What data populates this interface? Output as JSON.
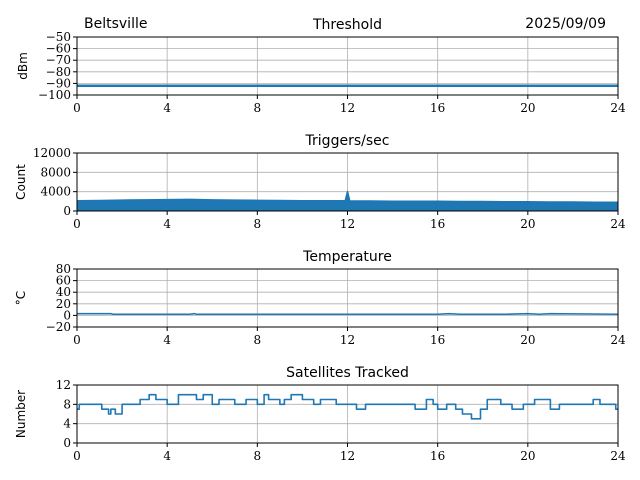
{
  "header": {
    "location": "Beltsville",
    "date": "2025/09/09"
  },
  "colors": {
    "series": "#1f77b4",
    "grid": "#b0b0b0",
    "axis": "#000000"
  },
  "chart_data": [
    {
      "type": "line",
      "title": "Threshold",
      "ylabel": "dBm",
      "xlim": [
        0,
        24
      ],
      "ylim": [
        -100,
        -50
      ],
      "xticks": [
        0,
        4,
        8,
        12,
        16,
        20,
        24
      ],
      "yticks": [
        -100,
        -90,
        -80,
        -70,
        -60,
        -50
      ],
      "ytick_labels": [
        "−100",
        "−90",
        "−80",
        "−70",
        "−60",
        "−50"
      ],
      "grid": true,
      "series": [
        {
          "x": [
            0,
            24
          ],
          "values": [
            -92,
            -92
          ]
        }
      ]
    },
    {
      "type": "line",
      "title": "Triggers/sec",
      "ylabel": "Count",
      "xlim": [
        0,
        24
      ],
      "ylim": [
        0,
        12000
      ],
      "xticks": [
        0,
        4,
        8,
        12,
        16,
        20,
        24
      ],
      "yticks": [
        0,
        4000,
        8000,
        12000
      ],
      "ytick_labels": [
        "0",
        "4000",
        "8000",
        "12000"
      ],
      "grid": true,
      "fill": true,
      "series": [
        {
          "x": [
            0,
            1,
            2,
            3,
            4,
            5,
            6,
            7,
            8,
            9,
            10,
            11,
            11.9,
            12,
            12.1,
            13,
            14,
            15,
            16,
            17,
            18,
            19,
            20,
            21,
            22,
            23,
            24
          ],
          "values": [
            2100,
            2150,
            2250,
            2300,
            2350,
            2400,
            2300,
            2250,
            2200,
            2150,
            2100,
            2100,
            2100,
            4000,
            2050,
            2050,
            2000,
            2000,
            2000,
            1950,
            1950,
            1900,
            1900,
            1850,
            1850,
            1800,
            1800
          ]
        }
      ]
    },
    {
      "type": "line",
      "title": "Temperature",
      "ylabel": "°C",
      "xlim": [
        0,
        24
      ],
      "ylim": [
        -20,
        80
      ],
      "xticks": [
        0,
        4,
        8,
        12,
        16,
        20,
        24
      ],
      "yticks": [
        -20,
        0,
        20,
        40,
        60,
        80
      ],
      "ytick_labels": [
        "−20",
        "0",
        "20",
        "40",
        "60",
        "80"
      ],
      "grid": true,
      "series": [
        {
          "x": [
            0,
            1.5,
            1.6,
            5,
            5.2,
            5.3,
            12,
            16,
            16.5,
            17,
            19,
            20,
            20.5,
            21,
            24
          ],
          "values": [
            3,
            3,
            2,
            2,
            3,
            2,
            2,
            2,
            3,
            2,
            2,
            3,
            2,
            3,
            2
          ]
        }
      ]
    },
    {
      "type": "line",
      "step": true,
      "title": "Satellites Tracked",
      "ylabel": "Number",
      "xlim": [
        0,
        24
      ],
      "ylim": [
        0,
        12
      ],
      "xticks": [
        0,
        4,
        8,
        12,
        16,
        20,
        24
      ],
      "yticks": [
        0,
        4,
        8,
        12
      ],
      "ytick_labels": [
        "0",
        "4",
        "8",
        "12"
      ],
      "grid": true,
      "series": [
        {
          "x": [
            0,
            0.1,
            1,
            1.1,
            1.4,
            1.5,
            1.7,
            2.0,
            2.3,
            2.5,
            2.8,
            3.2,
            3.5,
            3.8,
            4.0,
            4.5,
            5.0,
            5.3,
            5.6,
            6.0,
            6.3,
            7.0,
            7.5,
            8.0,
            8.3,
            8.5,
            9.0,
            9.2,
            9.5,
            10.0,
            10.5,
            10.8,
            11.2,
            11.5,
            12.0,
            12.4,
            12.8,
            13.3,
            13.7,
            14.0,
            14.5,
            15.0,
            15.5,
            15.8,
            16.0,
            16.4,
            16.8,
            17.1,
            17.5,
            17.9,
            18.2,
            18.8,
            19.3,
            19.8,
            20.3,
            20.6,
            21.0,
            21.4,
            22.0,
            22.5,
            22.9,
            23.2,
            23.6,
            23.9
          ],
          "values": [
            7,
            8,
            8,
            7,
            6,
            7,
            6,
            8,
            8,
            8,
            9,
            10,
            9,
            9,
            8,
            10,
            10,
            9,
            10,
            8,
            9,
            8,
            9,
            8,
            10,
            9,
            8,
            9,
            10,
            9,
            8,
            9,
            9,
            8,
            8,
            7,
            8,
            8,
            8,
            8,
            8,
            7,
            9,
            8,
            7,
            8,
            7,
            6,
            5,
            7,
            9,
            8,
            7,
            8,
            9,
            9,
            7,
            8,
            8,
            8,
            9,
            8,
            8,
            7
          ]
        }
      ]
    }
  ]
}
